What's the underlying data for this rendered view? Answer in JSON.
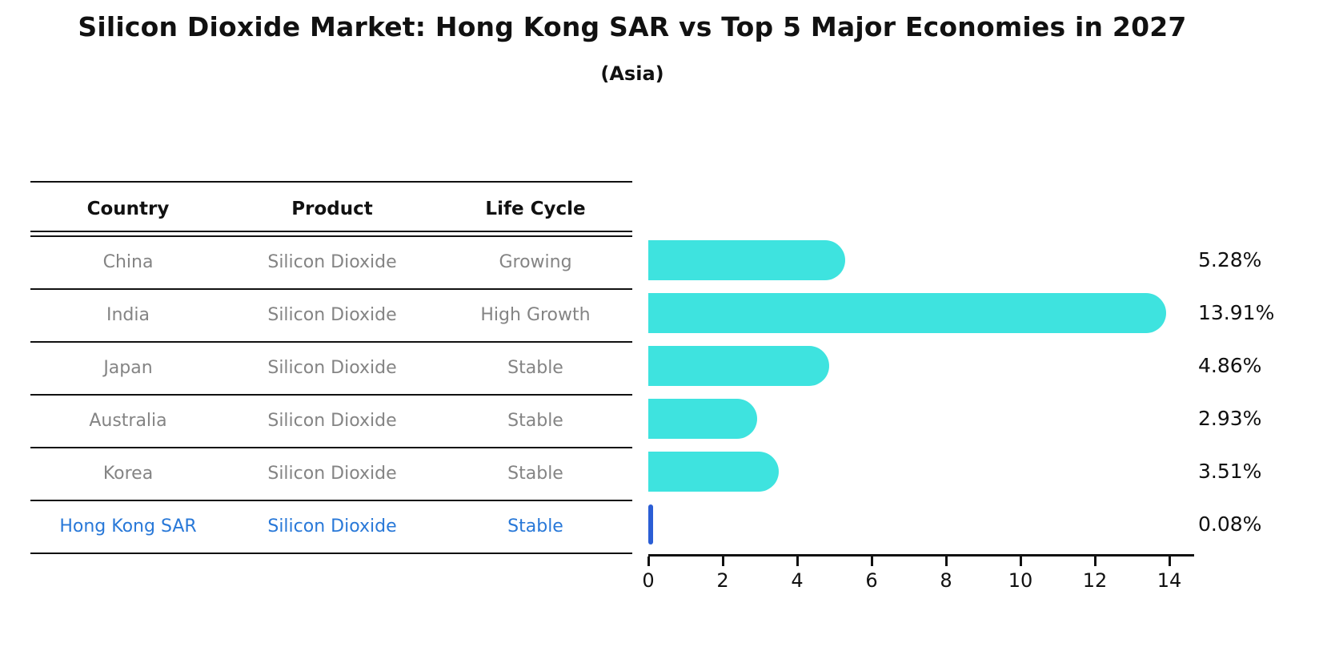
{
  "header": {
    "title": "Silicon Dioxide Market: Hong Kong SAR vs Top 5 Major Economies in 2027",
    "subtitle": "(Asia)"
  },
  "table": {
    "columns": [
      "Country",
      "Product",
      "Life Cycle"
    ],
    "rows": [
      {
        "country": "China",
        "product": "Silicon Dioxide",
        "life_cycle": "Growing"
      },
      {
        "country": "India",
        "product": "Silicon Dioxide",
        "life_cycle": "High Growth"
      },
      {
        "country": "Japan",
        "product": "Silicon Dioxide",
        "life_cycle": "Stable"
      },
      {
        "country": "Australia",
        "product": "Silicon Dioxide",
        "life_cycle": "Stable"
      },
      {
        "country": "Korea",
        "product": "Silicon Dioxide",
        "life_cycle": "Stable"
      },
      {
        "country": "Hong Kong SAR",
        "product": "Silicon Dioxide",
        "life_cycle": "Stable"
      }
    ],
    "highlighted_row": "Hong Kong SAR"
  },
  "chart_data": {
    "type": "bar",
    "orientation": "horizontal",
    "title": "Silicon Dioxide Market: Hong Kong SAR vs Top 5 Major Economies in 2027",
    "subtitle": "(Asia)",
    "categories": [
      "China",
      "India",
      "Japan",
      "Australia",
      "Korea",
      "Hong Kong SAR"
    ],
    "values": [
      5.28,
      13.91,
      4.86,
      2.93,
      3.51,
      0.08
    ],
    "value_labels": [
      "5.28%",
      "13.91%",
      "4.86%",
      "2.93%",
      "3.51%",
      "0.08%"
    ],
    "x_ticks": [
      0,
      2,
      4,
      6,
      8,
      10,
      12,
      14
    ],
    "xlim": [
      0,
      14.65
    ],
    "grid": false,
    "legend": false,
    "bar_color": "#3EE3DF",
    "highlight_bar_color": "#2B5ED5",
    "highlight_text_color": "#2878D8",
    "text_color": "#848484"
  }
}
